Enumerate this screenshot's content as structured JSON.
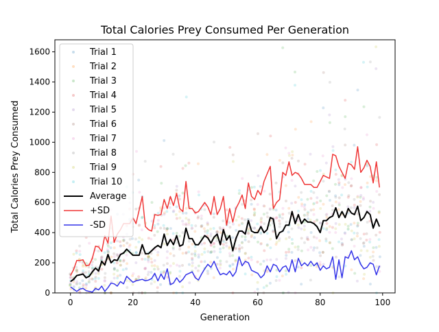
{
  "chart_data": {
    "type": "scatter",
    "title": "Total Calories Prey Consumed Per Generation",
    "xlabel": "Generation",
    "ylabel": "Total Calories Prey Consumed",
    "xlim": [
      -5,
      104
    ],
    "ylim": [
      0,
      1680
    ],
    "xticks": [
      0,
      20,
      40,
      60,
      80,
      100
    ],
    "yticks": [
      0,
      200,
      400,
      600,
      800,
      1000,
      1200,
      1400,
      1600
    ],
    "grid": false,
    "legend_position": "top-left",
    "trial_series": [
      {
        "name": "Trial 1",
        "color": "#1f77b4"
      },
      {
        "name": "Trial 2",
        "color": "#ff7f0e"
      },
      {
        "name": "Trial 3",
        "color": "#2ca02c"
      },
      {
        "name": "Trial 4",
        "color": "#d62728"
      },
      {
        "name": "Trial 5",
        "color": "#9467bd"
      },
      {
        "name": "Trial 6",
        "color": "#8c564b"
      },
      {
        "name": "Trial 7",
        "color": "#e377c2"
      },
      {
        "name": "Trial 8",
        "color": "#7f7f7f"
      },
      {
        "name": "Trial 9",
        "color": "#bcbd22"
      },
      {
        "name": "Trial 10",
        "color": "#17becf"
      }
    ],
    "line_series": [
      {
        "name": "Average",
        "color": "#000000",
        "width": 2,
        "x": [
          0,
          1,
          2,
          3,
          4,
          5,
          6,
          7,
          8,
          9,
          10,
          11,
          12,
          13,
          14,
          15,
          16,
          17,
          18,
          19,
          20,
          21,
          22,
          23,
          24,
          25,
          26,
          27,
          28,
          29,
          30,
          31,
          32,
          33,
          34,
          35,
          36,
          37,
          38,
          39,
          40,
          41,
          42,
          43,
          44,
          45,
          46,
          47,
          48,
          49,
          50,
          51,
          52,
          53,
          54,
          55,
          56,
          57,
          58,
          59,
          60,
          61,
          62,
          63,
          64,
          65,
          66,
          67,
          68,
          69,
          70,
          71,
          72,
          73,
          74,
          75,
          76,
          77,
          78,
          79,
          80,
          81,
          82,
          83,
          84,
          85,
          86,
          87,
          88,
          89,
          90,
          91,
          92,
          93,
          94,
          95,
          96,
          97,
          98,
          99
        ],
        "y": [
          75,
          90,
          115,
          120,
          125,
          100,
          110,
          140,
          165,
          145,
          210,
          185,
          255,
          200,
          220,
          215,
          255,
          265,
          290,
          270,
          250,
          250,
          250,
          320,
          260,
          260,
          280,
          300,
          315,
          300,
          390,
          315,
          355,
          320,
          380,
          310,
          320,
          430,
          360,
          360,
          320,
          320,
          350,
          380,
          365,
          330,
          370,
          390,
          320,
          420,
          350,
          380,
          280,
          360,
          410,
          410,
          390,
          480,
          410,
          400,
          400,
          440,
          400,
          420,
          500,
          490,
          360,
          400,
          410,
          450,
          450,
          540,
          460,
          520,
          460,
          490,
          470,
          470,
          460,
          440,
          400,
          480,
          480,
          500,
          510,
          565,
          500,
          540,
          500,
          560,
          530,
          520,
          575,
          480,
          500,
          540,
          520,
          430,
          490,
          440
        ]
      },
      {
        "name": "+SD",
        "color": "#ef3535",
        "width": 1.5,
        "x": [
          0,
          1,
          2,
          3,
          4,
          5,
          6,
          7,
          8,
          9,
          10,
          11,
          12,
          13,
          14,
          15,
          16,
          17,
          18,
          19,
          20,
          21,
          22,
          23,
          24,
          25,
          26,
          27,
          28,
          29,
          30,
          31,
          32,
          33,
          34,
          35,
          36,
          37,
          38,
          39,
          40,
          41,
          42,
          43,
          44,
          45,
          46,
          47,
          48,
          49,
          50,
          51,
          52,
          53,
          54,
          55,
          56,
          57,
          58,
          59,
          60,
          61,
          62,
          63,
          64,
          65,
          66,
          67,
          68,
          69,
          70,
          71,
          72,
          73,
          74,
          75,
          76,
          77,
          78,
          79,
          80,
          81,
          82,
          83,
          84,
          85,
          86,
          87,
          88,
          89,
          90,
          91,
          92,
          93,
          94,
          95,
          96,
          97,
          98,
          99
        ],
        "y": [
          115,
          155,
          215,
          215,
          220,
          180,
          185,
          230,
          310,
          305,
          275,
          380,
          330,
          510,
          335,
          390,
          420,
          460,
          460,
          460,
          500,
          460,
          550,
          640,
          440,
          420,
          410,
          520,
          515,
          520,
          620,
          560,
          640,
          580,
          660,
          560,
          540,
          740,
          560,
          560,
          530,
          540,
          570,
          600,
          570,
          520,
          640,
          520,
          560,
          640,
          450,
          560,
          470,
          560,
          600,
          650,
          560,
          730,
          640,
          620,
          680,
          650,
          740,
          790,
          840,
          560,
          600,
          620,
          800,
          780,
          870,
          780,
          800,
          790,
          760,
          720,
          720,
          720,
          700,
          700,
          740,
          780,
          770,
          760,
          920,
          910,
          840,
          800,
          760,
          860,
          850,
          820,
          970,
          800,
          830,
          880,
          840,
          730,
          870,
          700
        ]
      },
      {
        "name": "-SD",
        "color": "#3232e8",
        "width": 1.5,
        "x": [
          0,
          1,
          2,
          3,
          4,
          5,
          6,
          7,
          8,
          9,
          10,
          11,
          12,
          13,
          14,
          15,
          16,
          17,
          18,
          19,
          20,
          21,
          22,
          23,
          24,
          25,
          26,
          27,
          28,
          29,
          30,
          31,
          32,
          33,
          34,
          35,
          36,
          37,
          38,
          39,
          40,
          41,
          42,
          43,
          44,
          45,
          46,
          47,
          48,
          49,
          50,
          51,
          52,
          53,
          54,
          55,
          56,
          57,
          58,
          59,
          60,
          61,
          62,
          63,
          64,
          65,
          66,
          67,
          68,
          69,
          70,
          71,
          72,
          73,
          74,
          75,
          76,
          77,
          78,
          79,
          80,
          81,
          82,
          83,
          84,
          85,
          86,
          87,
          88,
          89,
          90,
          91,
          92,
          93,
          94,
          95,
          96,
          97,
          98,
          99
        ],
        "y": [
          40,
          25,
          10,
          25,
          30,
          15,
          10,
          5,
          30,
          20,
          45,
          10,
          35,
          65,
          60,
          45,
          75,
          60,
          110,
          90,
          70,
          80,
          85,
          90,
          80,
          85,
          95,
          130,
          80,
          125,
          90,
          160,
          55,
          65,
          100,
          70,
          90,
          120,
          130,
          140,
          100,
          85,
          125,
          160,
          190,
          170,
          210,
          160,
          120,
          130,
          120,
          145,
          110,
          140,
          240,
          180,
          210,
          200,
          150,
          140,
          130,
          100,
          120,
          180,
          140,
          190,
          180,
          140,
          170,
          180,
          140,
          220,
          140,
          230,
          180,
          200,
          180,
          210,
          180,
          200,
          150,
          180,
          160,
          170,
          240,
          90,
          220,
          100,
          240,
          230,
          280,
          220,
          240,
          190,
          160,
          170,
          200,
          190,
          120,
          180
        ]
      }
    ]
  }
}
